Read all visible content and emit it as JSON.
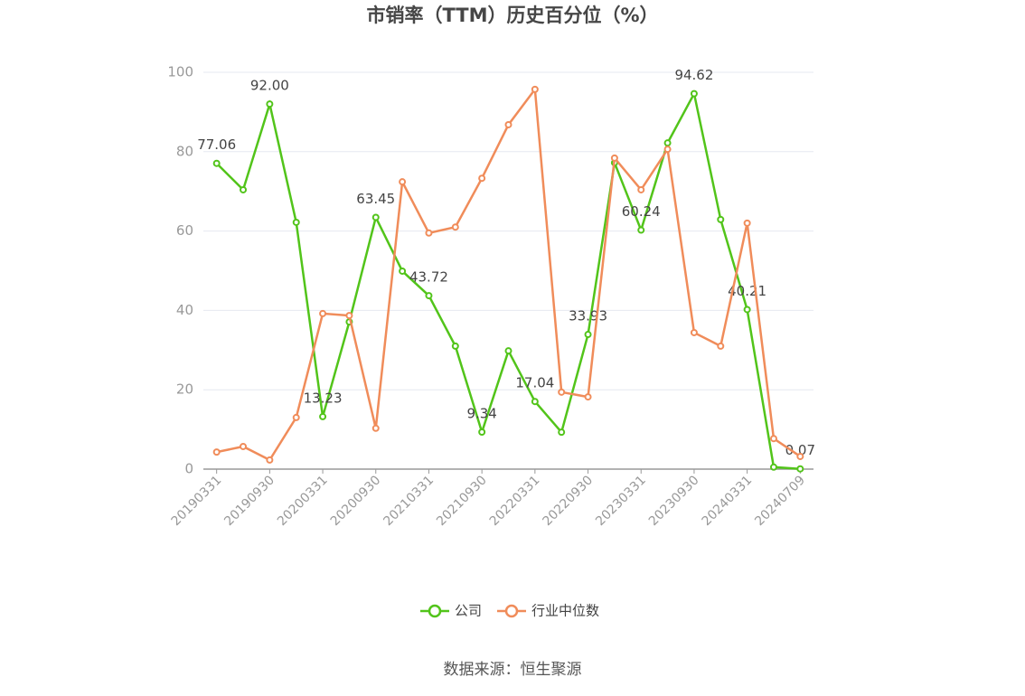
{
  "chart_data": {
    "type": "line",
    "title": "市销率（TTM）历史百分位（%）",
    "source": "数据来源：恒生聚源",
    "categories": [
      "20190331",
      null,
      "20190930",
      null,
      "20200331",
      null,
      "20200930",
      null,
      "20210331",
      null,
      "20210930",
      null,
      "20220331",
      null,
      "20220930",
      null,
      "20230331",
      null,
      "20230930",
      null,
      "20240331",
      null,
      "20240709"
    ],
    "series": [
      {
        "name": "公司",
        "color": "#52c41a",
        "values": [
          77.06,
          70.4,
          92.0,
          62.2,
          13.23,
          37.1,
          63.45,
          49.9,
          43.72,
          31.0,
          9.34,
          29.8,
          17.04,
          9.3,
          33.93,
          77.2,
          60.24,
          82.2,
          94.62,
          62.9,
          40.21,
          0.5,
          0.07
        ],
        "value_labels": [
          "77.06",
          null,
          "92.00",
          null,
          "13.23",
          null,
          "63.45",
          null,
          "43.72",
          null,
          "9.34",
          null,
          "17.04",
          null,
          "33.93",
          null,
          "60.24",
          null,
          "94.62",
          null,
          "40.21",
          null,
          "0.07"
        ]
      },
      {
        "name": "行业中位数",
        "color": "#f08c5a",
        "values": [
          4.3,
          5.7,
          2.3,
          13.0,
          39.2,
          38.7,
          10.3,
          72.4,
          59.5,
          61.0,
          73.3,
          86.8,
          95.7,
          19.4,
          18.2,
          78.4,
          70.4,
          80.6,
          34.4,
          31.0,
          62.0,
          7.7,
          3.2
        ]
      }
    ],
    "ylim": [
      0,
      100
    ],
    "yticks": [
      0,
      20,
      40,
      60,
      80,
      100
    ],
    "grid": true,
    "legend": "bottom"
  }
}
